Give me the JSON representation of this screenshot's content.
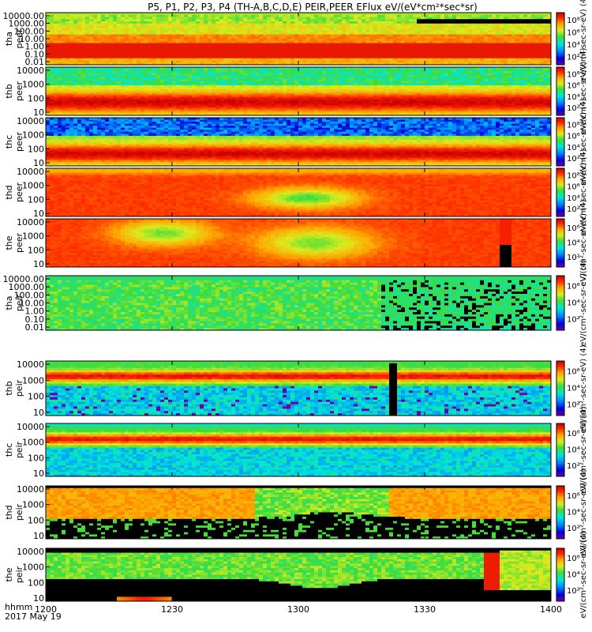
{
  "chart_data": {
    "type": "heatmap",
    "title": "P5, P1, P2, P3, P4 (TH-A,B,C,D,E) PEIR,PEER EFlux eV/(eV*cm²*sec*sr)",
    "xlabel_top": "hhmm",
    "xlabel_date": "2017 May 19",
    "x_tick_labels": [
      "1200",
      "1230",
      "1300",
      "1330",
      "1400"
    ],
    "x_ticks_minutes": [
      0,
      30,
      60,
      90,
      120
    ],
    "xlim_minutes": [
      0,
      120
    ],
    "y_scale": "log",
    "colormap": "rainbow",
    "colorbar_scale": "log",
    "panels": [
      {
        "ylabel_top": "tha",
        "ylabel_bottom": "peer",
        "y_tick_labels": [
          "10000.00",
          "1000.00",
          "100.00",
          "10.00",
          "1.00",
          "0.10",
          "0.01"
        ],
        "colorbar_ticks": [
          "10⁸",
          "10⁶",
          "10⁴",
          "10²"
        ],
        "colorbar_label": "eV/(cm²-sec-sr-eV) (4)",
        "pattern": "tha_peer"
      },
      {
        "ylabel_top": "thb",
        "ylabel_bottom": "peer",
        "y_tick_labels": [
          "10000",
          "1000",
          "100",
          "10"
        ],
        "colorbar_ticks": [
          "10⁸",
          "10⁶",
          "10⁴",
          "10²"
        ],
        "colorbar_label": "eV/(cm²-sec-sr-eV) (4)",
        "pattern": "thb_peer"
      },
      {
        "ylabel_top": "thc",
        "ylabel_bottom": "peer",
        "y_tick_labels": [
          "10000",
          "1000",
          "100",
          "10"
        ],
        "colorbar_ticks": [
          "10⁸",
          "10⁶",
          "10⁴",
          "10²"
        ],
        "colorbar_label": "eV/(cm²-sec-sr-eV) (4)",
        "pattern": "thc_peer"
      },
      {
        "ylabel_top": "thd",
        "ylabel_bottom": "peer",
        "y_tick_labels": [
          "10000",
          "1000",
          "100",
          "10"
        ],
        "colorbar_ticks": [
          "10⁸",
          "10⁶",
          "10⁴",
          "10²"
        ],
        "colorbar_label": "eV/(cm²-sec-sr-eV) (4)",
        "pattern": "thd_peer"
      },
      {
        "ylabel_top": "the",
        "ylabel_bottom": "peer",
        "y_tick_labels": [
          "10000",
          "1000",
          "100",
          "10"
        ],
        "colorbar_ticks": [
          "10⁶",
          "10⁴",
          "10²"
        ],
        "colorbar_label": "eV/(cm²-sec-sr-eV) (4)",
        "pattern": "the_peer"
      },
      {
        "ylabel_top": "tha",
        "ylabel_bottom": "peir",
        "y_tick_labels": [
          "10000.00",
          "1000.00",
          "100.00",
          "10.00",
          "1.00",
          "0.10",
          "0.01"
        ],
        "colorbar_ticks": [
          "10⁶",
          "10⁴",
          "10²"
        ],
        "colorbar_label": "eV/(cm²-sec-sr-eV) (4)",
        "pattern": "tha_peir"
      },
      {
        "ylabel_top": "thb",
        "ylabel_bottom": "peir",
        "y_tick_labels": [
          "10000",
          "1000",
          "100",
          "10"
        ],
        "colorbar_ticks": [
          "10⁶",
          "10⁴",
          "10²"
        ],
        "colorbar_label": "eV/(cm²-sec-sr-eV) (4)",
        "pattern": "thb_peir"
      },
      {
        "ylabel_top": "thc",
        "ylabel_bottom": "peir",
        "y_tick_labels": [
          "10000",
          "1000",
          "100",
          "10"
        ],
        "colorbar_ticks": [
          "10⁶",
          "10⁴",
          "10²"
        ],
        "colorbar_label": "eV/(cm²-sec-sr-eV) (4)",
        "pattern": "thc_peir"
      },
      {
        "ylabel_top": "thd",
        "ylabel_bottom": "peir",
        "y_tick_labels": [
          "10000",
          "1000",
          "100",
          "10"
        ],
        "colorbar_ticks": [
          "10⁶",
          "10⁴",
          "10²"
        ],
        "colorbar_label": "eV/(cm²-sec-sr-eV) (4)",
        "pattern": "thd_peir"
      },
      {
        "ylabel_top": "the",
        "ylabel_bottom": "peir",
        "y_tick_labels": [
          "10000",
          "1000",
          "100",
          "10"
        ],
        "colorbar_ticks": [
          "10⁶",
          "10⁴",
          "10²"
        ],
        "colorbar_label": "eV/(cm²-sec-sr-eV) (4)",
        "pattern": "the_peir"
      }
    ]
  }
}
